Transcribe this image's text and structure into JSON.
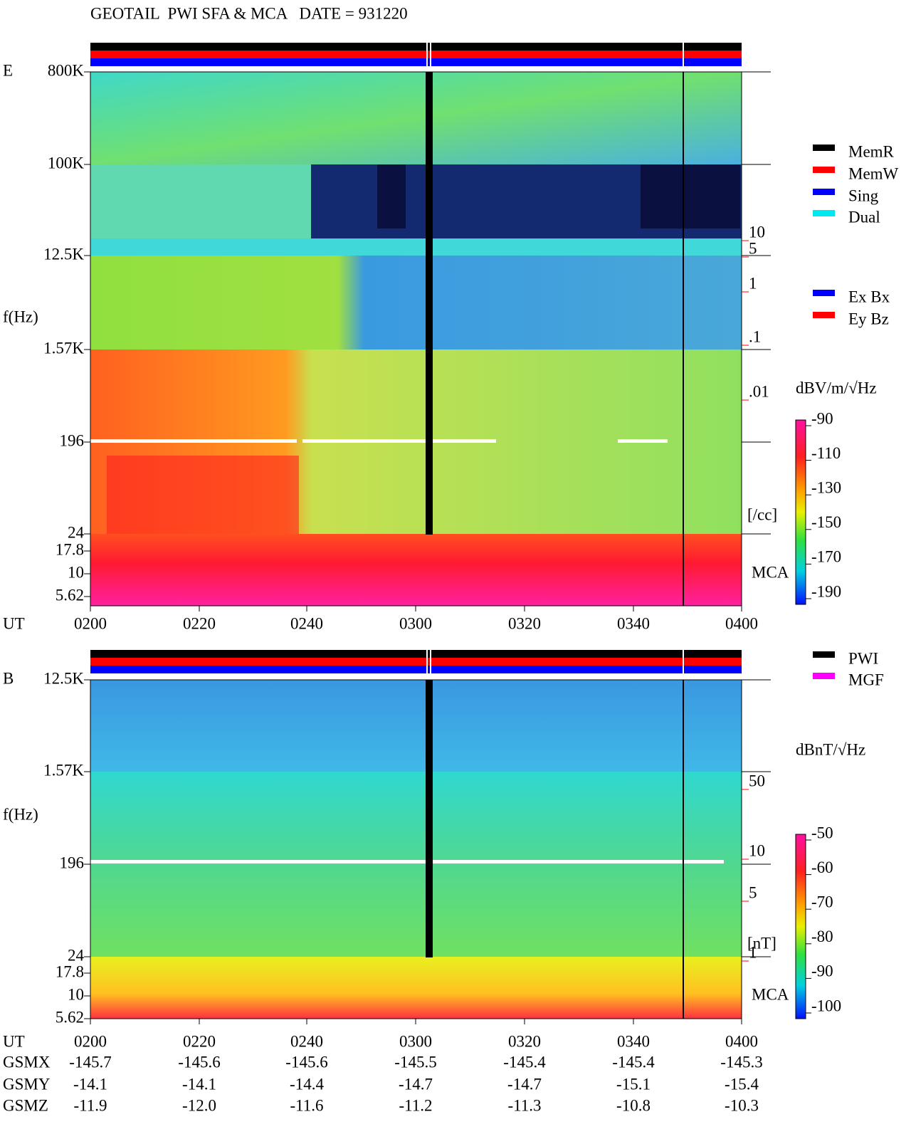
{
  "title": "GEOTAIL  PWI SFA & MCA   DATE = 931220",
  "panels": [
    {
      "component": "E",
      "ylabel": "f(Hz)",
      "yticks": [
        "800K",
        "100K",
        "12.5K",
        "1.57K",
        "196",
        "24",
        "17.8",
        "10",
        "5.62"
      ],
      "xlabel": "UT",
      "xticks": [
        "0200",
        "0220",
        "0240",
        "0300",
        "0320",
        "0340",
        "0400"
      ],
      "scale_labels": [
        "10",
        "5",
        "1",
        ".1",
        ".01"
      ],
      "scale_unit": "[/cc]",
      "mca_label": "MCA",
      "legend": [
        {
          "name": "MemR",
          "color": "#000000"
        },
        {
          "name": "MemW",
          "color": "#ff0000"
        },
        {
          "name": "Sing",
          "color": "#0000ff"
        },
        {
          "name": "Dual",
          "color": "#00e8f0"
        }
      ],
      "legend2": [
        {
          "name": "Ex Bx",
          "color": "#0000ff"
        },
        {
          "name": "Ey Bz",
          "color": "#ff0000"
        }
      ],
      "colorbar": {
        "label": "dBV/m/√Hz",
        "ticks": [
          "-90",
          "-110",
          "-130",
          "-150",
          "-170",
          "-190"
        ]
      }
    },
    {
      "component": "B",
      "ylabel": "f(Hz)",
      "yticks": [
        "12.5K",
        "1.57K",
        "196",
        "24",
        "17.8",
        "10",
        "5.62"
      ],
      "xlabel": "UT",
      "xticks": [
        "0200",
        "0220",
        "0240",
        "0300",
        "0320",
        "0340",
        "0400"
      ],
      "scale_labels": [
        "50",
        "10",
        "5",
        "1"
      ],
      "scale_unit": "[nT]",
      "mca_label": "MCA",
      "legend": [
        {
          "name": "PWI",
          "color": "#000000"
        },
        {
          "name": "MGF",
          "color": "#ff00ff"
        }
      ],
      "colorbar": {
        "label": "dBnT/√Hz",
        "ticks": [
          "-50",
          "-60",
          "-70",
          "-80",
          "-90",
          "-100"
        ]
      }
    }
  ],
  "orbit": {
    "rows": [
      {
        "label": "GSMX",
        "values": [
          "-145.7",
          "-145.6",
          "-145.6",
          "-145.5",
          "-145.4",
          "-145.4",
          "-145.3"
        ]
      },
      {
        "label": "GSMY",
        "values": [
          "-14.1",
          "-14.1",
          "-14.4",
          "-14.7",
          "-14.7",
          "-15.1",
          "-15.4"
        ]
      },
      {
        "label": "GSMZ",
        "values": [
          "-11.9",
          "-12.0",
          "-11.6",
          "-11.2",
          "-11.3",
          "-10.8",
          "-10.3"
        ]
      }
    ]
  }
}
